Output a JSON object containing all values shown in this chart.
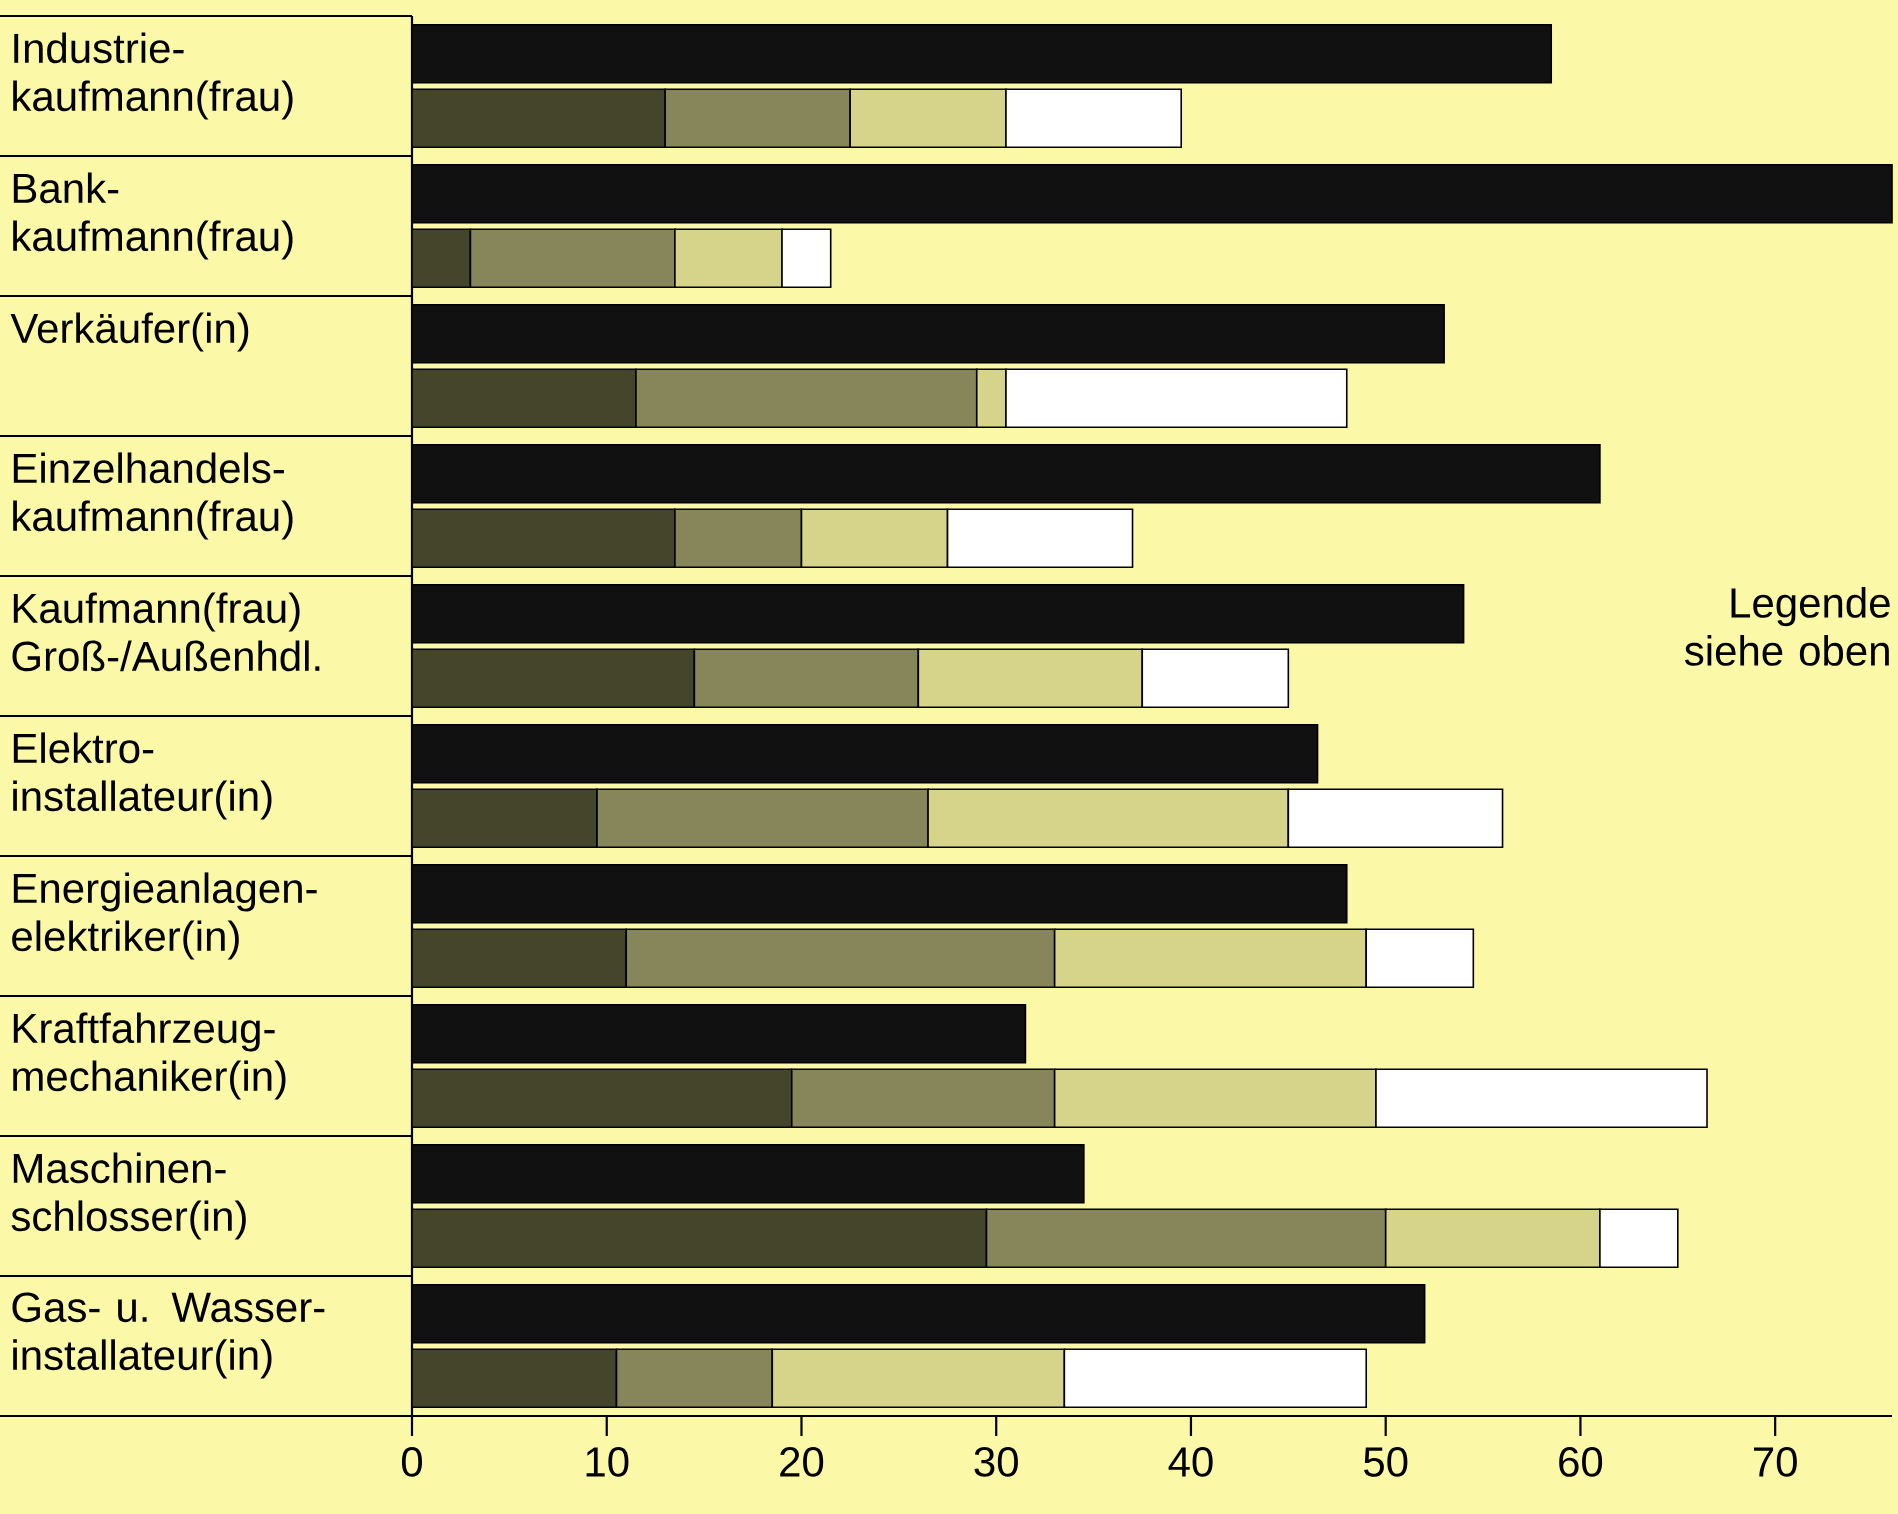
{
  "chart_data": {
    "type": "bar",
    "orientation": "horizontal",
    "categories": [
      "Industrie- kaufmann(frau)",
      "Bank- kaufmann(frau)",
      "Verkäufer(in)",
      "Einzelhandels- kaufmann(frau)",
      "Kaufmann(frau) Groß-/Außenhdl.",
      "Elektro- installateur(in)",
      "Energieanlagen- elektriker(in)",
      "Kraftfahrzeug- mechaniker(in)",
      "Maschinen- schlosser(in)",
      "Gas- u. Wasser- installateur(in)"
    ],
    "xlim": [
      0,
      76
    ],
    "xticks": [
      0,
      10,
      20,
      30,
      40,
      50,
      60,
      70
    ],
    "annotations": [
      "Legende siehe oben"
    ],
    "series": [
      {
        "color": "#111111",
        "values": [
          58.5,
          76,
          53,
          61,
          54,
          46.5,
          48,
          31.5,
          34.5,
          52
        ]
      },
      {
        "color": "#45452c",
        "base": [
          0,
          0,
          0,
          0,
          0,
          0,
          0,
          0,
          0,
          0
        ],
        "values": [
          13,
          3,
          11.5,
          13.5,
          14.5,
          9.5,
          11,
          19.5,
          29.5,
          10.5
        ]
      },
      {
        "color": "#86865a",
        "base": [
          13,
          3,
          11.5,
          13.5,
          14.5,
          9.5,
          11,
          19.5,
          29.5,
          10.5
        ],
        "values": [
          9.5,
          10.5,
          17.5,
          6.5,
          11.5,
          17,
          22,
          13.5,
          20.5,
          8
        ]
      },
      {
        "color": "#d6d48a",
        "base": [
          22.5,
          13.5,
          29,
          20,
          26,
          26.5,
          33,
          33,
          50,
          18.5
        ],
        "values": [
          8,
          5.5,
          1.5,
          7.5,
          11.5,
          18.5,
          16,
          16.5,
          11,
          15
        ]
      },
      {
        "color": "#ffffff",
        "base": [
          30.5,
          19,
          30.5,
          27.5,
          37.5,
          45,
          49,
          49.5,
          61,
          33.5
        ],
        "values": [
          9,
          2.5,
          17.5,
          9.5,
          7.5,
          11,
          5.5,
          17,
          4,
          15.5
        ]
      }
    ]
  }
}
